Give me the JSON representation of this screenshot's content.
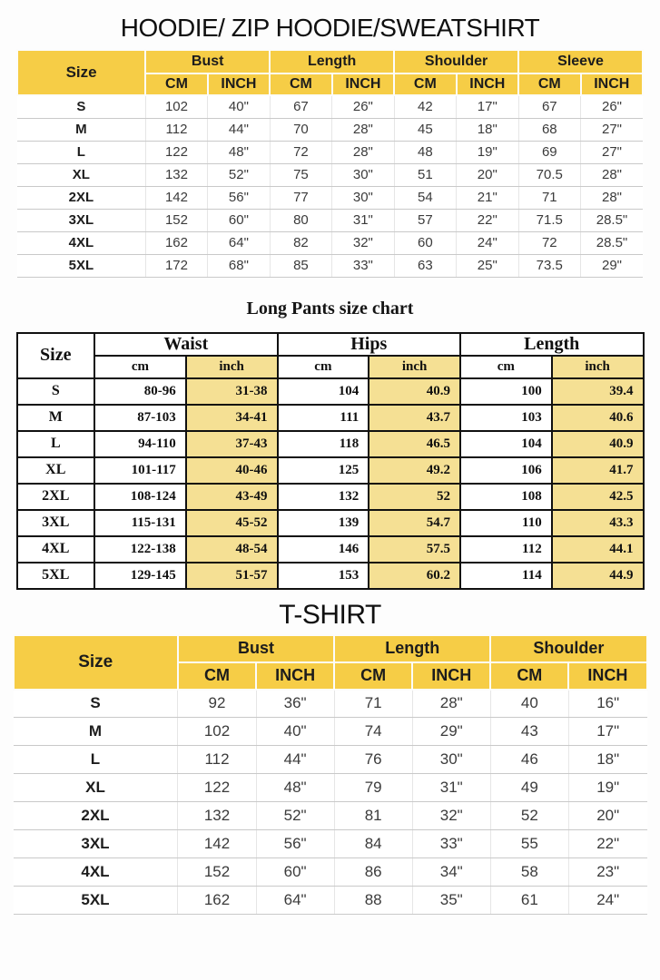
{
  "colors": {
    "header_yellow": "#f6cd46",
    "inch_highlight": "#f5e094",
    "grid_gray": "#c9c9c9",
    "border_black": "#101010"
  },
  "hoodie": {
    "title": "HOODIE/ ZIP HOODIE/SWEATSHIRT",
    "size_header": "Size",
    "groups": [
      "Bust",
      "Length",
      "Shoulder",
      "Sleeve"
    ],
    "subheaders": [
      "CM",
      "INCH"
    ],
    "rows": [
      {
        "size": "S",
        "values": [
          "102",
          "40\"",
          "67",
          "26\"",
          "42",
          "17\"",
          "67",
          "26\""
        ]
      },
      {
        "size": "M",
        "values": [
          "112",
          "44\"",
          "70",
          "28\"",
          "45",
          "18\"",
          "68",
          "27\""
        ]
      },
      {
        "size": "L",
        "values": [
          "122",
          "48\"",
          "72",
          "28\"",
          "48",
          "19\"",
          "69",
          "27\""
        ]
      },
      {
        "size": "XL",
        "values": [
          "132",
          "52\"",
          "75",
          "30\"",
          "51",
          "20\"",
          "70.5",
          "28\""
        ]
      },
      {
        "size": "2XL",
        "values": [
          "142",
          "56\"",
          "77",
          "30\"",
          "54",
          "21\"",
          "71",
          "28\""
        ]
      },
      {
        "size": "3XL",
        "values": [
          "152",
          "60\"",
          "80",
          "31\"",
          "57",
          "22\"",
          "71.5",
          "28.5\""
        ]
      },
      {
        "size": "4XL",
        "values": [
          "162",
          "64\"",
          "82",
          "32\"",
          "60",
          "24\"",
          "72",
          "28.5\""
        ]
      },
      {
        "size": "5XL",
        "values": [
          "172",
          "68\"",
          "85",
          "33\"",
          "63",
          "25\"",
          "73.5",
          "29\""
        ]
      }
    ]
  },
  "pants": {
    "title": "Long Pants size chart",
    "size_header": "Size",
    "groups": [
      "Waist",
      "Hips",
      "Length"
    ],
    "subheaders": [
      "cm",
      "inch"
    ],
    "rows": [
      {
        "size": "S",
        "values": [
          "80-96",
          "31-38",
          "104",
          "40.9",
          "100",
          "39.4"
        ]
      },
      {
        "size": "M",
        "values": [
          "87-103",
          "34-41",
          "111",
          "43.7",
          "103",
          "40.6"
        ]
      },
      {
        "size": "L",
        "values": [
          "94-110",
          "37-43",
          "118",
          "46.5",
          "104",
          "40.9"
        ]
      },
      {
        "size": "XL",
        "values": [
          "101-117",
          "40-46",
          "125",
          "49.2",
          "106",
          "41.7"
        ]
      },
      {
        "size": "2XL",
        "values": [
          "108-124",
          "43-49",
          "132",
          "52",
          "108",
          "42.5"
        ]
      },
      {
        "size": "3XL",
        "values": [
          "115-131",
          "45-52",
          "139",
          "54.7",
          "110",
          "43.3"
        ]
      },
      {
        "size": "4XL",
        "values": [
          "122-138",
          "48-54",
          "146",
          "57.5",
          "112",
          "44.1"
        ]
      },
      {
        "size": "5XL",
        "values": [
          "129-145",
          "51-57",
          "153",
          "60.2",
          "114",
          "44.9"
        ]
      }
    ]
  },
  "tshirt": {
    "title": "T-SHIRT",
    "size_header": "Size",
    "groups": [
      "Bust",
      "Length",
      "Shoulder"
    ],
    "subheaders": [
      "CM",
      "INCH"
    ],
    "rows": [
      {
        "size": "S",
        "values": [
          "92",
          "36\"",
          "71",
          "28\"",
          "40",
          "16\""
        ]
      },
      {
        "size": "M",
        "values": [
          "102",
          "40\"",
          "74",
          "29\"",
          "43",
          "17\""
        ]
      },
      {
        "size": "L",
        "values": [
          "112",
          "44\"",
          "76",
          "30\"",
          "46",
          "18\""
        ]
      },
      {
        "size": "XL",
        "values": [
          "122",
          "48\"",
          "79",
          "31\"",
          "49",
          "19\""
        ]
      },
      {
        "size": "2XL",
        "values": [
          "132",
          "52\"",
          "81",
          "32\"",
          "52",
          "20\""
        ]
      },
      {
        "size": "3XL",
        "values": [
          "142",
          "56\"",
          "84",
          "33\"",
          "55",
          "22\""
        ]
      },
      {
        "size": "4XL",
        "values": [
          "152",
          "60\"",
          "86",
          "34\"",
          "58",
          "23\""
        ]
      },
      {
        "size": "5XL",
        "values": [
          "162",
          "64\"",
          "88",
          "35\"",
          "61",
          "24\""
        ]
      }
    ]
  }
}
